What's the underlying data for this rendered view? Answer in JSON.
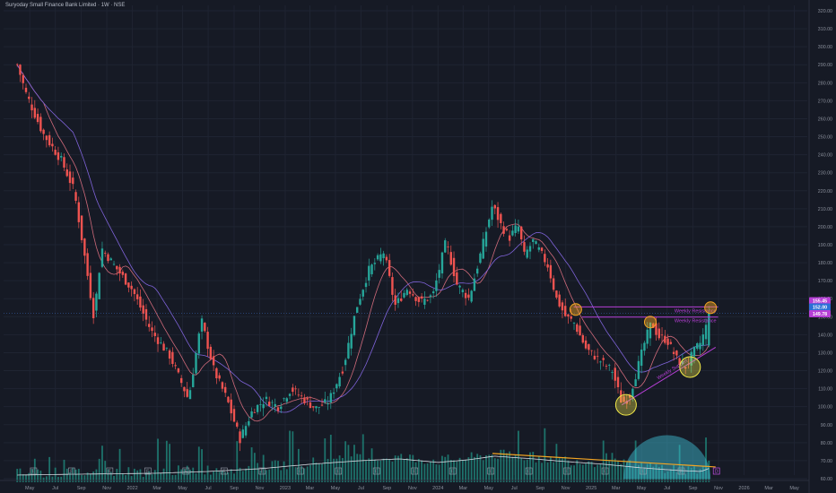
{
  "header": {
    "title": "Suryoday Small Finance Bank Limited · 1W · NSE"
  },
  "colors": {
    "background": "#161a25",
    "grid": "#1f2432",
    "up": "#26a69a",
    "down": "#ef5350",
    "ma_fast": "#cf6a7a",
    "ma_slow": "#7f63d9",
    "resistance": "#b63fd6",
    "support": "#b63fd6",
    "circle_orange": "#f5a623",
    "circle_yellow": "#f3ea48",
    "volume": "#1f8278",
    "volume_ma": "#d8dbe2",
    "volume_trend": "#f5a623",
    "volume_dome": "#40c4da",
    "axis_text": "#8b909c",
    "current_price": "#4a8dff"
  },
  "chart_data": {
    "type": "candlestick",
    "title": "Suryoday Small Finance Bank Limited · 1W · NSE",
    "ylim": [
      58,
      323
    ],
    "y_ticks": [
      60,
      70,
      80,
      90,
      100,
      110,
      120,
      130,
      140,
      150,
      160,
      170,
      180,
      190,
      200,
      210,
      220,
      230,
      240,
      250,
      260,
      270,
      280,
      290,
      300,
      310,
      320
    ],
    "x_ticks": [
      "May",
      "Jul",
      "Sep",
      "Nov",
      "2022",
      "Mar",
      "May",
      "Jul",
      "Sep",
      "Nov",
      "2023",
      "Mar",
      "May",
      "Jul",
      "Sep",
      "Nov",
      "2024",
      "Mar",
      "May",
      "Jul",
      "Sep",
      "Nov",
      "2025",
      "Mar",
      "May",
      "Jul",
      "Sep",
      "Nov",
      "2026",
      "Mar",
      "May"
    ],
    "price_anchors": [
      [
        "2021-04-01",
        290
      ],
      [
        "2021-04-22",
        274
      ],
      [
        "2021-06-01",
        252
      ],
      [
        "2021-07-15",
        237
      ],
      [
        "2021-08-15",
        220
      ],
      [
        "2021-09-10",
        182
      ],
      [
        "2021-10-01",
        150
      ],
      [
        "2021-10-20",
        188
      ],
      [
        "2021-11-20",
        178
      ],
      [
        "2022-01-01",
        165
      ],
      [
        "2022-02-15",
        142
      ],
      [
        "2022-04-01",
        128
      ],
      [
        "2022-05-15",
        104
      ],
      [
        "2022-06-15",
        148
      ],
      [
        "2022-07-15",
        120
      ],
      [
        "2022-08-15",
        104
      ],
      [
        "2022-09-15",
        82
      ],
      [
        "2022-10-15",
        98
      ],
      [
        "2022-11-15",
        104
      ],
      [
        "2022-12-15",
        100
      ],
      [
        "2023-01-15",
        110
      ],
      [
        "2023-02-15",
        104
      ],
      [
        "2023-03-15",
        99
      ],
      [
        "2023-04-15",
        103
      ],
      [
        "2023-05-20",
        122
      ],
      [
        "2023-06-20",
        155
      ],
      [
        "2023-07-20",
        176
      ],
      [
        "2023-08-25",
        186
      ],
      [
        "2023-09-20",
        156
      ],
      [
        "2023-10-20",
        166
      ],
      [
        "2023-11-20",
        158
      ],
      [
        "2023-12-20",
        162
      ],
      [
        "2024-01-20",
        192
      ],
      [
        "2024-02-15",
        168
      ],
      [
        "2024-03-15",
        160
      ],
      [
        "2024-04-15",
        188
      ],
      [
        "2024-05-10",
        212
      ],
      [
        "2024-06-01",
        200
      ],
      [
        "2024-06-20",
        194
      ],
      [
        "2024-07-10",
        201
      ],
      [
        "2024-07-25",
        184
      ],
      [
        "2024-08-15",
        192
      ],
      [
        "2024-09-01",
        186
      ],
      [
        "2024-09-20",
        178
      ],
      [
        "2024-10-10",
        160
      ],
      [
        "2024-11-01",
        150
      ],
      [
        "2024-11-20",
        147
      ],
      [
        "2024-12-20",
        132
      ],
      [
        "2025-01-20",
        126
      ],
      [
        "2025-02-20",
        120
      ],
      [
        "2025-03-15",
        102
      ],
      [
        "2025-04-01",
        105
      ],
      [
        "2025-04-20",
        120
      ],
      [
        "2025-05-10",
        137
      ],
      [
        "2025-05-25",
        147
      ],
      [
        "2025-06-10",
        139
      ],
      [
        "2025-07-01",
        137
      ],
      [
        "2025-07-25",
        126
      ],
      [
        "2025-08-15",
        122
      ],
      [
        "2025-09-01",
        130
      ],
      [
        "2025-09-20",
        136
      ],
      [
        "2025-10-13",
        152
      ]
    ],
    "volume_ma_anchors": [
      [
        "2021-04-01",
        62
      ],
      [
        "2021-09-01",
        62.5
      ],
      [
        "2022-03-01",
        63
      ],
      [
        "2022-07-01",
        64
      ],
      [
        "2022-11-01",
        65.5
      ],
      [
        "2023-03-01",
        68
      ],
      [
        "2023-07-01",
        70
      ],
      [
        "2023-10-01",
        71
      ],
      [
        "2024-01-01",
        69
      ],
      [
        "2024-03-15",
        70.5
      ],
      [
        "2024-05-15",
        72.5
      ],
      [
        "2024-08-15",
        71
      ],
      [
        "2024-11-01",
        69.5
      ],
      [
        "2025-02-01",
        68
      ],
      [
        "2025-05-01",
        66
      ],
      [
        "2025-08-01",
        64.5
      ],
      [
        "2025-09-20",
        64
      ],
      [
        "2025-10-13",
        66
      ]
    ],
    "current_price": 152.0,
    "price_labels": [
      {
        "value": 155.45,
        "text": "155.45"
      },
      {
        "value": 152.0,
        "text": "152.00"
      },
      {
        "value": 149.78,
        "text": "149.78"
      }
    ],
    "resistance_lines": [
      {
        "start": "2024-11-20",
        "end": "2025-10-31",
        "value": 155.45,
        "label": "Weekly Resistance"
      },
      {
        "start": "2024-12-10",
        "end": "2025-10-31",
        "value": 149.78,
        "label": "Weekly Resistance"
      }
    ],
    "support_line": {
      "start": "2025-03-15",
      "start_value": 101,
      "end": "2025-10-25",
      "end_value": 133,
      "label": "Weekly Support"
    },
    "volume_trendline": {
      "start": "2024-05-10",
      "start_value": 74,
      "end": "2025-10-25",
      "end_value": 66.5
    },
    "highlight_circles": [
      {
        "date": "2024-11-25",
        "value": 154,
        "color": "orange"
      },
      {
        "date": "2025-05-22",
        "value": 147,
        "color": "orange"
      },
      {
        "date": "2025-10-13",
        "value": 155,
        "color": "orange"
      },
      {
        "date": "2025-03-25",
        "value": 101,
        "color": "yellow"
      },
      {
        "date": "2025-08-25",
        "value": 122,
        "color": "yellow"
      }
    ],
    "earnings_markers": [
      "2021-05-10",
      "2021-08-09",
      "2021-11-08",
      "2022-02-07",
      "2022-05-09",
      "2022-08-08",
      "2022-11-07",
      "2023-02-06",
      "2023-05-08",
      "2023-08-07",
      "2023-11-06",
      "2024-02-05",
      "2024-05-06",
      "2024-08-05",
      "2024-11-04",
      "2025-02-03",
      "2025-05-05",
      "2025-08-04"
    ],
    "dividend_marker": "2025-10-27",
    "earnings_symbol": "E",
    "dividend_symbol": "D"
  }
}
